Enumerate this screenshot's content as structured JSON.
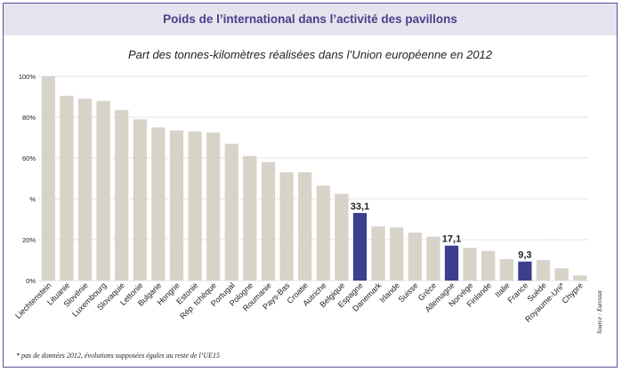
{
  "title": "Poids de l’international dans l’activité des pavillons",
  "subtitle": "Part des tonnes-kilomètres réalisées dans l’Union européenne en 2012",
  "footnote": "* pas de données 2012, évolutions supposées égales au reste de l’UE15",
  "source": "Source : Eurostat",
  "colors": {
    "bar_default": "#d8d3c9",
    "bar_highlight": "#3c3f8c",
    "grid": "#b9b9b9",
    "text": "#222222"
  },
  "chart_data": {
    "type": "bar",
    "categories": [
      "Liechtenstein",
      "Lituanie",
      "Slovénie",
      "Luxembourg",
      "Slovaquie",
      "Lettonie",
      "Bulgarie",
      "Hongrie",
      "Estonie",
      "Rép. tchèque",
      "Portugal",
      "Pologne",
      "Roumanie",
      "Pays-Bas",
      "Croatie",
      "Autriche",
      "Belgique",
      "Espagne",
      "Danemark",
      "Irlande",
      "Suisse",
      "Grèce",
      "Allemagne",
      "Norvège",
      "Finlande",
      "Italie",
      "France",
      "Suède",
      "Royaume-Uni*",
      "Chypre"
    ],
    "values": [
      100,
      90.5,
      89,
      88,
      83.5,
      79,
      75,
      73.5,
      73,
      72.5,
      67,
      61,
      58,
      53,
      53,
      46.5,
      42.5,
      33.1,
      26.5,
      26,
      23.5,
      21.5,
      17.1,
      16,
      14.5,
      10.5,
      9.3,
      10,
      6,
      2.5
    ],
    "highlight": [
      "Espagne",
      "Allemagne",
      "France"
    ],
    "data_labels": [
      {
        "category": "Espagne",
        "label": "33,1"
      },
      {
        "category": "Allemagne",
        "label": "17,1"
      },
      {
        "category": "France",
        "label": "9,3"
      }
    ],
    "ylim": [
      0,
      100
    ],
    "yticks": [
      0,
      20,
      40,
      60,
      80,
      100
    ],
    "ytick_labels": [
      "0%",
      "20%",
      "%",
      "60%",
      "80%",
      "100%"
    ],
    "xlabel": "",
    "ylabel": "",
    "grid": true
  }
}
